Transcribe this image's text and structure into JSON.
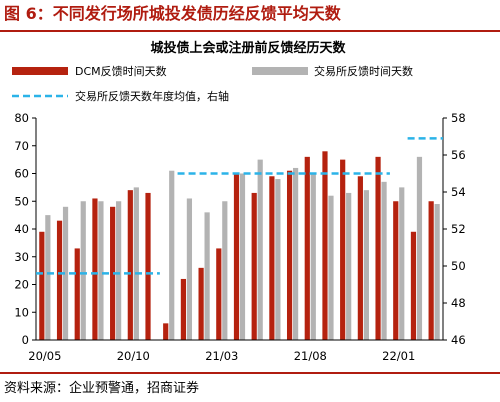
{
  "figure": {
    "title": "图 6：不同发行场所城投发债历经反馈平均天数",
    "source": "资料来源：企业预警通，招商证券"
  },
  "colors": {
    "dcm": "#b5220f",
    "exchange": "#b3b3b3",
    "exchange_avg": "#2bb3e8",
    "brand": "#b01c10"
  },
  "chart_data": {
    "type": "bar",
    "title": "城投债上会或注册前反馈经历天数",
    "legend": [
      "DCM反馈时间天数",
      "交易所反馈时间天数",
      "交易所反馈天数年度均值，右轴"
    ],
    "legend_position": "top",
    "categories": [
      "20/05",
      "20/06",
      "20/07",
      "20/08",
      "20/09",
      "20/10",
      "20/11",
      "20/12",
      "21/01",
      "21/02",
      "21/03",
      "21/04",
      "21/05",
      "21/06",
      "21/07",
      "21/08",
      "21/09",
      "21/10",
      "21/11",
      "21/12",
      "22/01",
      "22/02",
      "22/03"
    ],
    "x_tick_labels": [
      "20/05",
      "20/10",
      "21/03",
      "21/08",
      "22/01"
    ],
    "series": [
      {
        "name": "DCM反馈时间天数",
        "axis": "left",
        "values": [
          39,
          43,
          33,
          51,
          48,
          54,
          53,
          6,
          22,
          26,
          33,
          60,
          53,
          59,
          61,
          66,
          68,
          65,
          59,
          66,
          50,
          39,
          50
        ]
      },
      {
        "name": "交易所反馈时间天数",
        "axis": "left",
        "values": [
          45,
          48,
          50,
          50,
          50,
          55,
          null,
          61,
          51,
          46,
          50,
          60,
          65,
          58,
          62,
          60,
          52,
          53,
          54,
          57,
          55,
          66,
          49
        ]
      },
      {
        "name": "交易所反馈天数年度均值，右轴",
        "axis": "right",
        "type": "line",
        "style": "dashed",
        "segments": [
          {
            "year": "2020",
            "from": "20/05",
            "to": "20/11",
            "value": 49.6
          },
          {
            "year": "2021",
            "from": "21/01",
            "to": "21/12",
            "value": 55.0
          },
          {
            "year": "2022",
            "from": "22/02",
            "to": "22/03",
            "value": 56.9
          }
        ]
      }
    ],
    "ylim": [
      0,
      80
    ],
    "y_ticks": [
      0,
      10,
      20,
      30,
      40,
      50,
      60,
      70,
      80
    ],
    "y2lim": [
      46,
      58
    ],
    "y2_ticks": [
      46,
      48,
      50,
      52,
      54,
      56,
      58
    ],
    "grid": false
  }
}
